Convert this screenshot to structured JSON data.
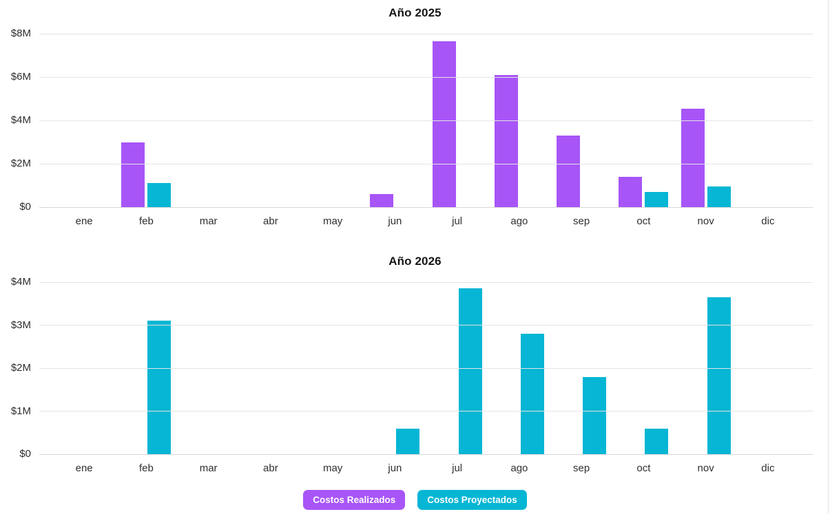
{
  "page": {
    "background": "#ffffff",
    "divider_color": "#e3e3e3"
  },
  "colors": {
    "realizados": "#a855f7",
    "proyectados": "#06b6d4",
    "gridline": "#e4e4e4"
  },
  "legend": {
    "items": [
      {
        "label": "Costos Realizados",
        "color": "#a855f7"
      },
      {
        "label": "Costos Proyectados",
        "color": "#06b6d4"
      }
    ]
  },
  "chart_data": [
    {
      "type": "bar",
      "title": "Año 2025",
      "unit": "USD millions",
      "categories": [
        "ene",
        "feb",
        "mar",
        "abr",
        "may",
        "jun",
        "jul",
        "ago",
        "sep",
        "oct",
        "nov",
        "dic"
      ],
      "series": [
        {
          "name": "Costos Realizados",
          "color": "#a855f7",
          "values": [
            0,
            3.0,
            0,
            0,
            0,
            0.6,
            7.65,
            6.1,
            3.3,
            1.4,
            4.55,
            0
          ]
        },
        {
          "name": "Costos Proyectados",
          "color": "#06b6d4",
          "values": [
            0,
            1.1,
            0,
            0,
            0,
            0,
            0,
            0,
            0,
            0.7,
            0.95,
            0
          ]
        }
      ],
      "ylim": [
        0,
        8
      ],
      "y_ticks": [
        {
          "v": 0,
          "label": "$0"
        },
        {
          "v": 2,
          "label": "$2M"
        },
        {
          "v": 4,
          "label": "$4M"
        },
        {
          "v": 6,
          "label": "$6M"
        },
        {
          "v": 8,
          "label": "$8M"
        }
      ],
      "grid": true,
      "legend_position": "bottom"
    },
    {
      "type": "bar",
      "title": "Año 2026",
      "unit": "USD millions",
      "categories": [
        "ene",
        "feb",
        "mar",
        "abr",
        "may",
        "jun",
        "jul",
        "ago",
        "sep",
        "oct",
        "nov",
        "dic"
      ],
      "series": [
        {
          "name": "Costos Realizados",
          "color": "#a855f7",
          "values": [
            0,
            0,
            0,
            0,
            0,
            0,
            0,
            0,
            0,
            0,
            0,
            0
          ]
        },
        {
          "name": "Costos Proyectados",
          "color": "#06b6d4",
          "values": [
            0,
            3.1,
            0,
            0,
            0,
            0.6,
            3.85,
            2.8,
            1.8,
            0.6,
            3.65,
            0
          ]
        }
      ],
      "ylim": [
        0,
        4
      ],
      "y_ticks": [
        {
          "v": 0,
          "label": "$0"
        },
        {
          "v": 1,
          "label": "$1M"
        },
        {
          "v": 2,
          "label": "$2M"
        },
        {
          "v": 3,
          "label": "$3M"
        },
        {
          "v": 4,
          "label": "$4M"
        }
      ],
      "grid": true,
      "legend_position": "bottom"
    }
  ]
}
